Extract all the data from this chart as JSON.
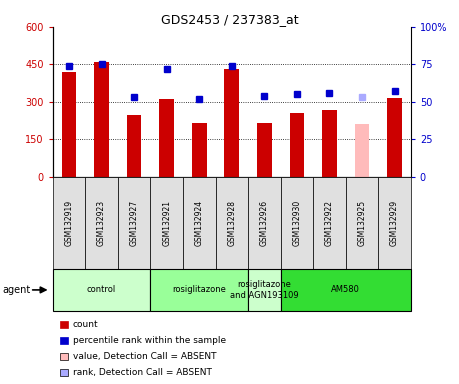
{
  "title": "GDS2453 / 237383_at",
  "samples": [
    "GSM132919",
    "GSM132923",
    "GSM132927",
    "GSM132921",
    "GSM132924",
    "GSM132928",
    "GSM132926",
    "GSM132930",
    "GSM132922",
    "GSM132925",
    "GSM132929"
  ],
  "bar_values": [
    420,
    460,
    245,
    310,
    215,
    430,
    215,
    255,
    265,
    210,
    315
  ],
  "bar_colors": [
    "#cc0000",
    "#cc0000",
    "#cc0000",
    "#cc0000",
    "#cc0000",
    "#cc0000",
    "#cc0000",
    "#cc0000",
    "#cc0000",
    "#ffbbbb",
    "#cc0000"
  ],
  "dot_values": [
    74,
    75,
    53,
    72,
    52,
    74,
    54,
    55,
    56,
    53,
    57
  ],
  "dot_absent": [
    false,
    false,
    false,
    false,
    false,
    false,
    false,
    false,
    false,
    true,
    false
  ],
  "ylim_left": [
    0,
    600
  ],
  "ylim_right": [
    0,
    100
  ],
  "yticks_left": [
    0,
    150,
    300,
    450,
    600
  ],
  "yticks_right": [
    0,
    25,
    50,
    75,
    100
  ],
  "ytick_labels_left": [
    "0",
    "150",
    "300",
    "450",
    "600"
  ],
  "ytick_labels_right": [
    "0",
    "25",
    "50",
    "75",
    "100%"
  ],
  "groups": [
    {
      "label": "control",
      "start": 0,
      "end": 3,
      "color": "#ccffcc"
    },
    {
      "label": "rosiglitazone",
      "start": 3,
      "end": 6,
      "color": "#99ff99"
    },
    {
      "label": "rosiglitazone\nand AGN193109",
      "start": 6,
      "end": 7,
      "color": "#ccffcc"
    },
    {
      "label": "AM580",
      "start": 7,
      "end": 11,
      "color": "#33dd33"
    }
  ],
  "dot_color_present": "#0000cc",
  "dot_color_absent": "#aaaaff",
  "bar_width": 0.45,
  "legend_items": [
    {
      "label": "count",
      "color": "#cc0000"
    },
    {
      "label": "percentile rank within the sample",
      "color": "#0000cc"
    },
    {
      "label": "value, Detection Call = ABSENT",
      "color": "#ffbbbb"
    },
    {
      "label": "rank, Detection Call = ABSENT",
      "color": "#aaaaff"
    }
  ],
  "grid_dotted_at": [
    150,
    300,
    450
  ],
  "sample_box_color": "#e0e0e0",
  "agent_label": "agent"
}
